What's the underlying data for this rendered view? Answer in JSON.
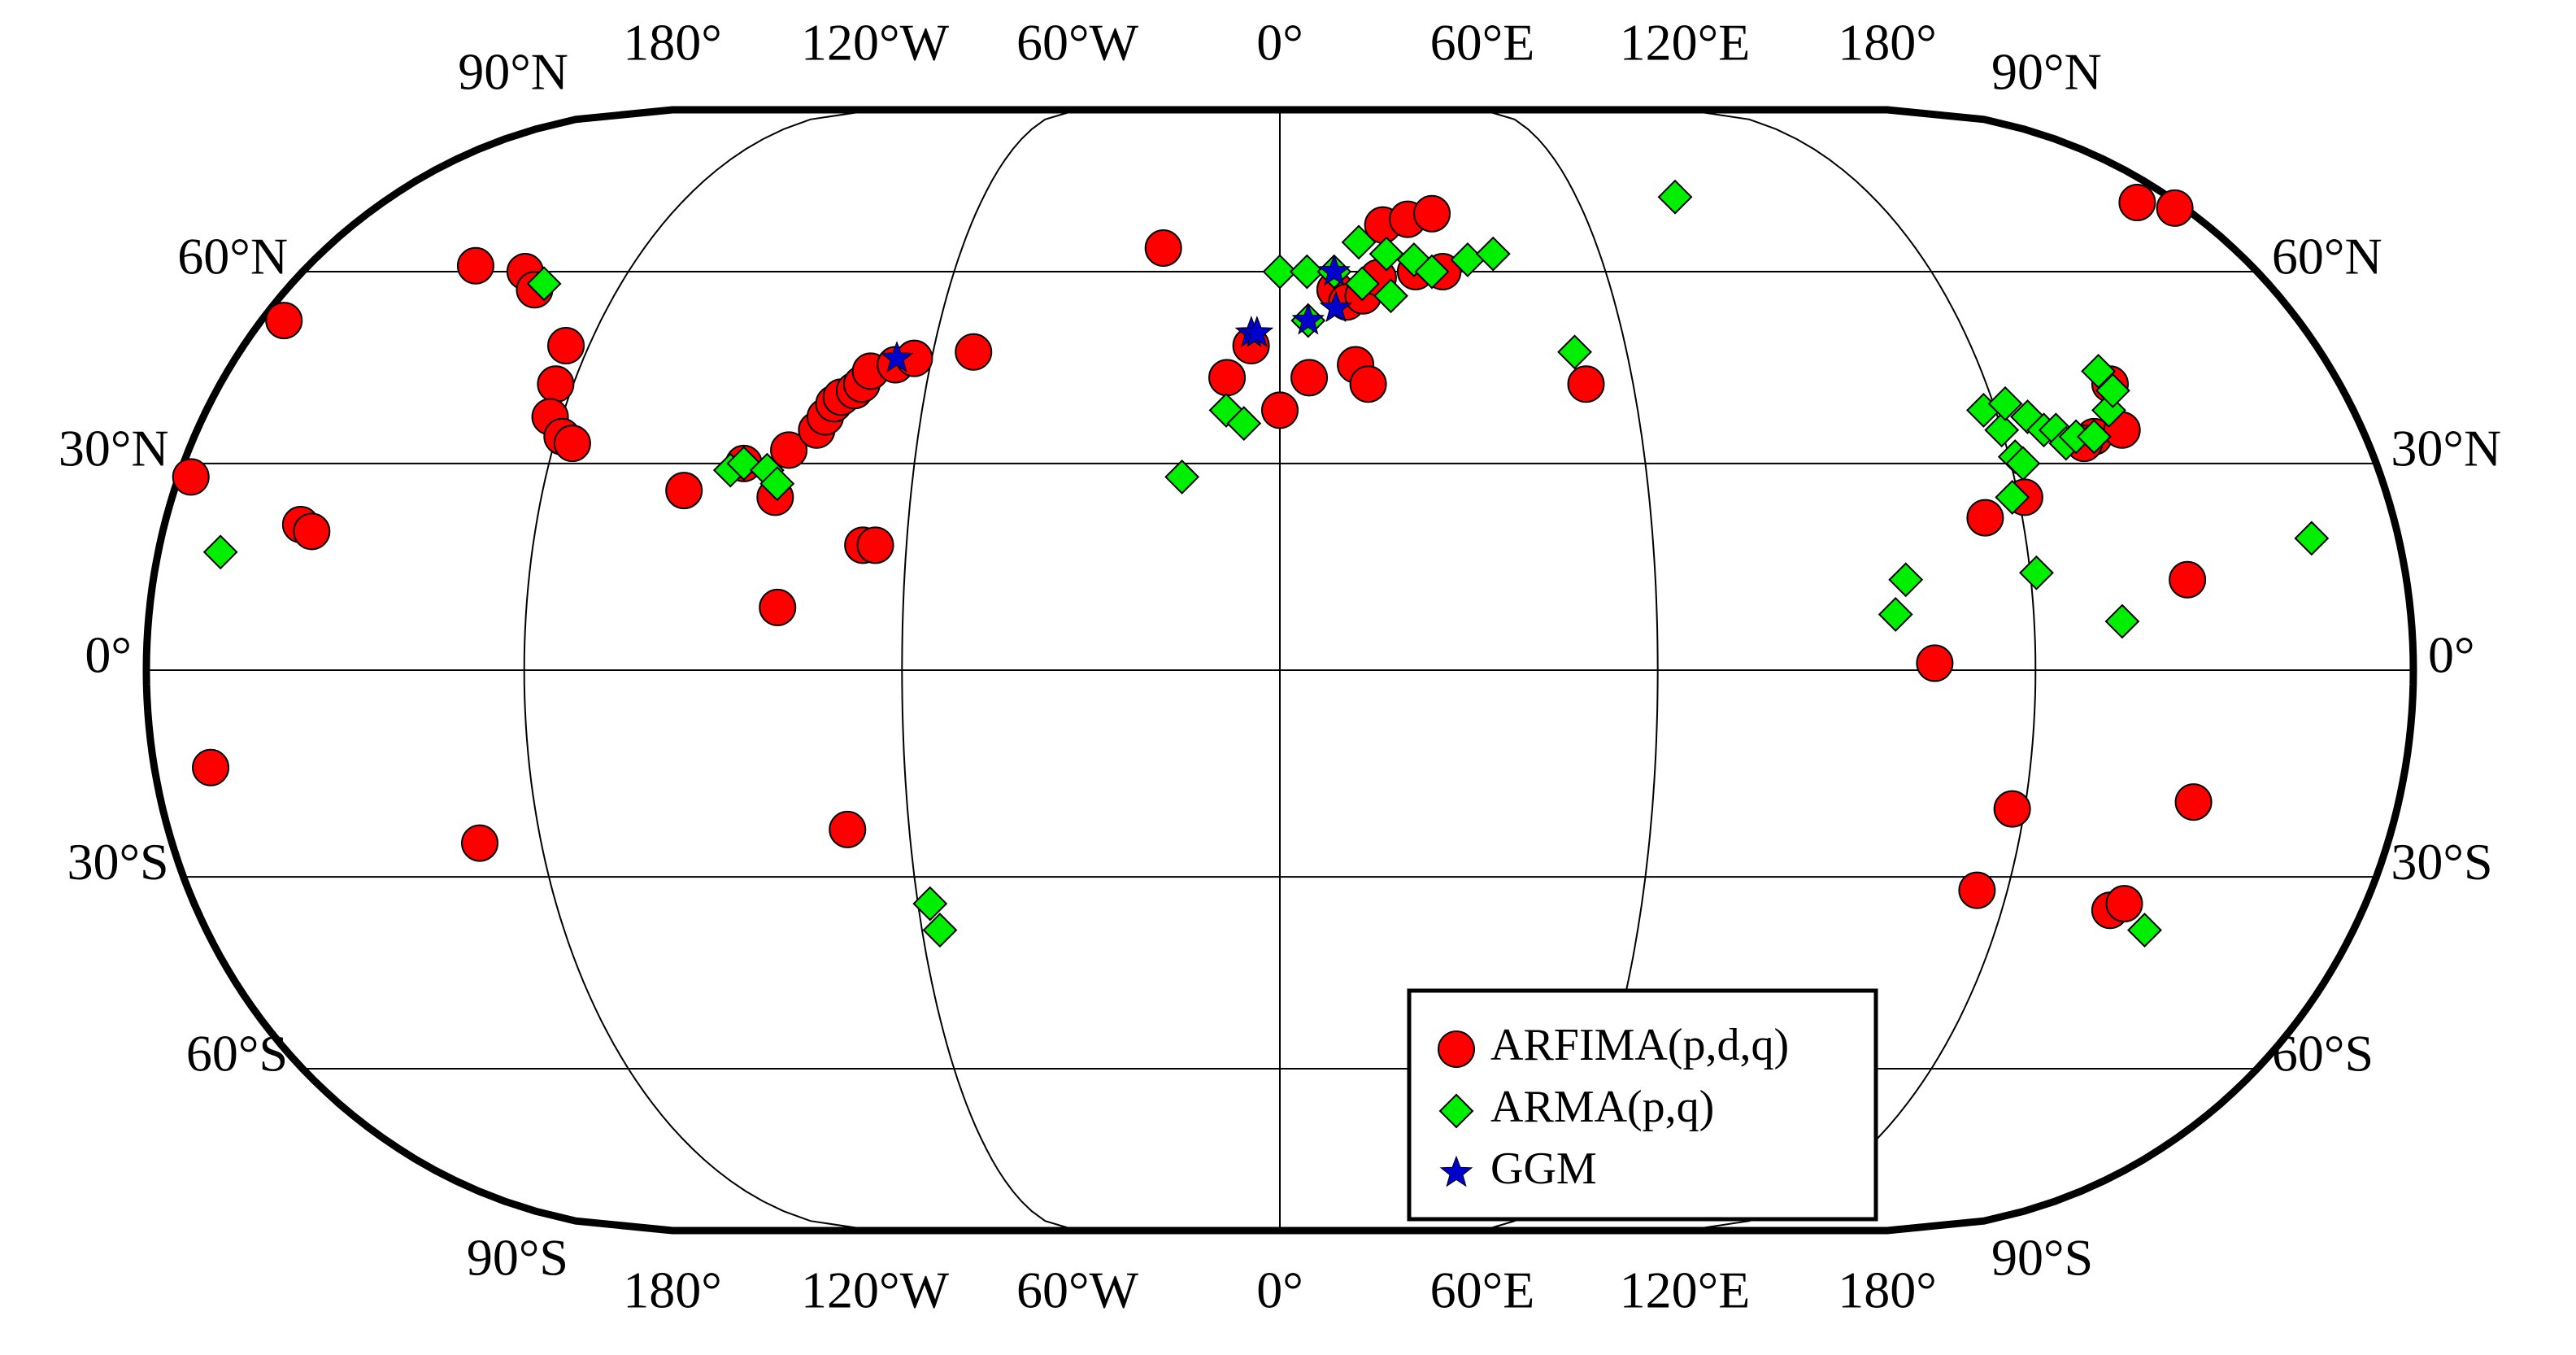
{
  "chart_data": {
    "type": "map",
    "xticks": [
      {
        "value": -180,
        "label": "180°"
      },
      {
        "value": -120,
        "label": "120°W"
      },
      {
        "value": -60,
        "label": "60°W"
      },
      {
        "value": 0,
        "label": "0°"
      },
      {
        "value": 60,
        "label": "60°E"
      },
      {
        "value": 120,
        "label": "120°E"
      },
      {
        "value": 180,
        "label": "180°"
      }
    ],
    "yticks": [
      {
        "value": 90,
        "label": "90°N"
      },
      {
        "value": 60,
        "label": "60°N"
      },
      {
        "value": 30,
        "label": "30°N"
      },
      {
        "value": 0,
        "label": "0°"
      },
      {
        "value": -30,
        "label": "30°S"
      },
      {
        "value": -60,
        "label": "60°S"
      },
      {
        "value": -90,
        "label": "90°S"
      }
    ],
    "xlim": [
      -180,
      180
    ],
    "ylim": [
      -90,
      90
    ],
    "grid": true,
    "legend": "lower right",
    "series": [
      {
        "name": "ARFIMA(p,d,q)",
        "color": "#ff0000",
        "marker": "circle",
        "x": [
          -176,
          -178,
          -158,
          -156,
          -171,
          -130,
          -149,
          -139,
          -135,
          -124,
          -123,
          -122,
          -119,
          -117,
          -97,
          -88,
          -82,
          -81,
          -77,
          -76,
          -75,
          -74,
          -72,
          -71,
          -70,
          -66,
          -63,
          -53,
          -67,
          -65,
          -80,
          -70,
          -22,
          -9,
          -5,
          0,
          5,
          13,
          15,
          52,
          10,
          12,
          15,
          18,
          20,
          25,
          30,
          25,
          30,
          172,
          178,
          141,
          135,
          140,
          133,
          114,
          121,
          145,
          104,
          118,
          115,
          138,
          140,
          147
        ],
        "values": [
          52,
          28,
          21,
          20,
          -14,
          -25,
          61,
          60,
          57,
          48,
          42,
          37,
          34,
          33,
          26,
          30,
          25,
          32,
          35,
          37,
          39,
          40,
          41,
          42,
          44,
          45,
          46,
          47,
          18,
          18,
          9,
          -23,
          64,
          43,
          48,
          38,
          43,
          45,
          42,
          42,
          57,
          55,
          56,
          59,
          68,
          69,
          70,
          60,
          60,
          72,
          71,
          42,
          34,
          35,
          33,
          22,
          25,
          13,
          1,
          -20,
          -32,
          -35,
          -34,
          -19
        ]
      },
      {
        "name": "ARMA(p,q)",
        "color": "#00ee00",
        "marker": "diamond",
        "x": [
          -170,
          -134,
          -90,
          -88,
          -84,
          -82,
          -58,
          -57,
          -16,
          -9,
          -6,
          0,
          5,
          10,
          15,
          20,
          25,
          28,
          35,
          40,
          5,
          15,
          20,
          80,
          51,
          121,
          122,
          120,
          118,
          122,
          125,
          127,
          129,
          130,
          132,
          135,
          139,
          141,
          140,
          98,
          100,
          119,
          121,
          134,
          166,
          145
        ],
        "values": [
          17,
          58,
          29,
          30,
          29,
          27,
          -34,
          -38,
          28,
          38,
          36,
          60,
          60,
          60,
          65,
          63,
          62,
          60,
          62,
          63,
          52,
          58,
          56,
          73,
          47,
          31,
          30,
          35,
          38,
          39,
          37,
          35,
          35,
          33,
          34,
          34,
          38,
          41,
          44,
          8,
          13,
          25,
          14,
          7,
          19,
          -38
        ]
      },
      {
        "name": "GGM",
        "color": "#0000cc",
        "marker": "star",
        "x": [
          -66,
          -5,
          -4,
          5,
          10,
          10
        ],
        "values": [
          46,
          50,
          50,
          52,
          54,
          60
        ]
      }
    ]
  }
}
